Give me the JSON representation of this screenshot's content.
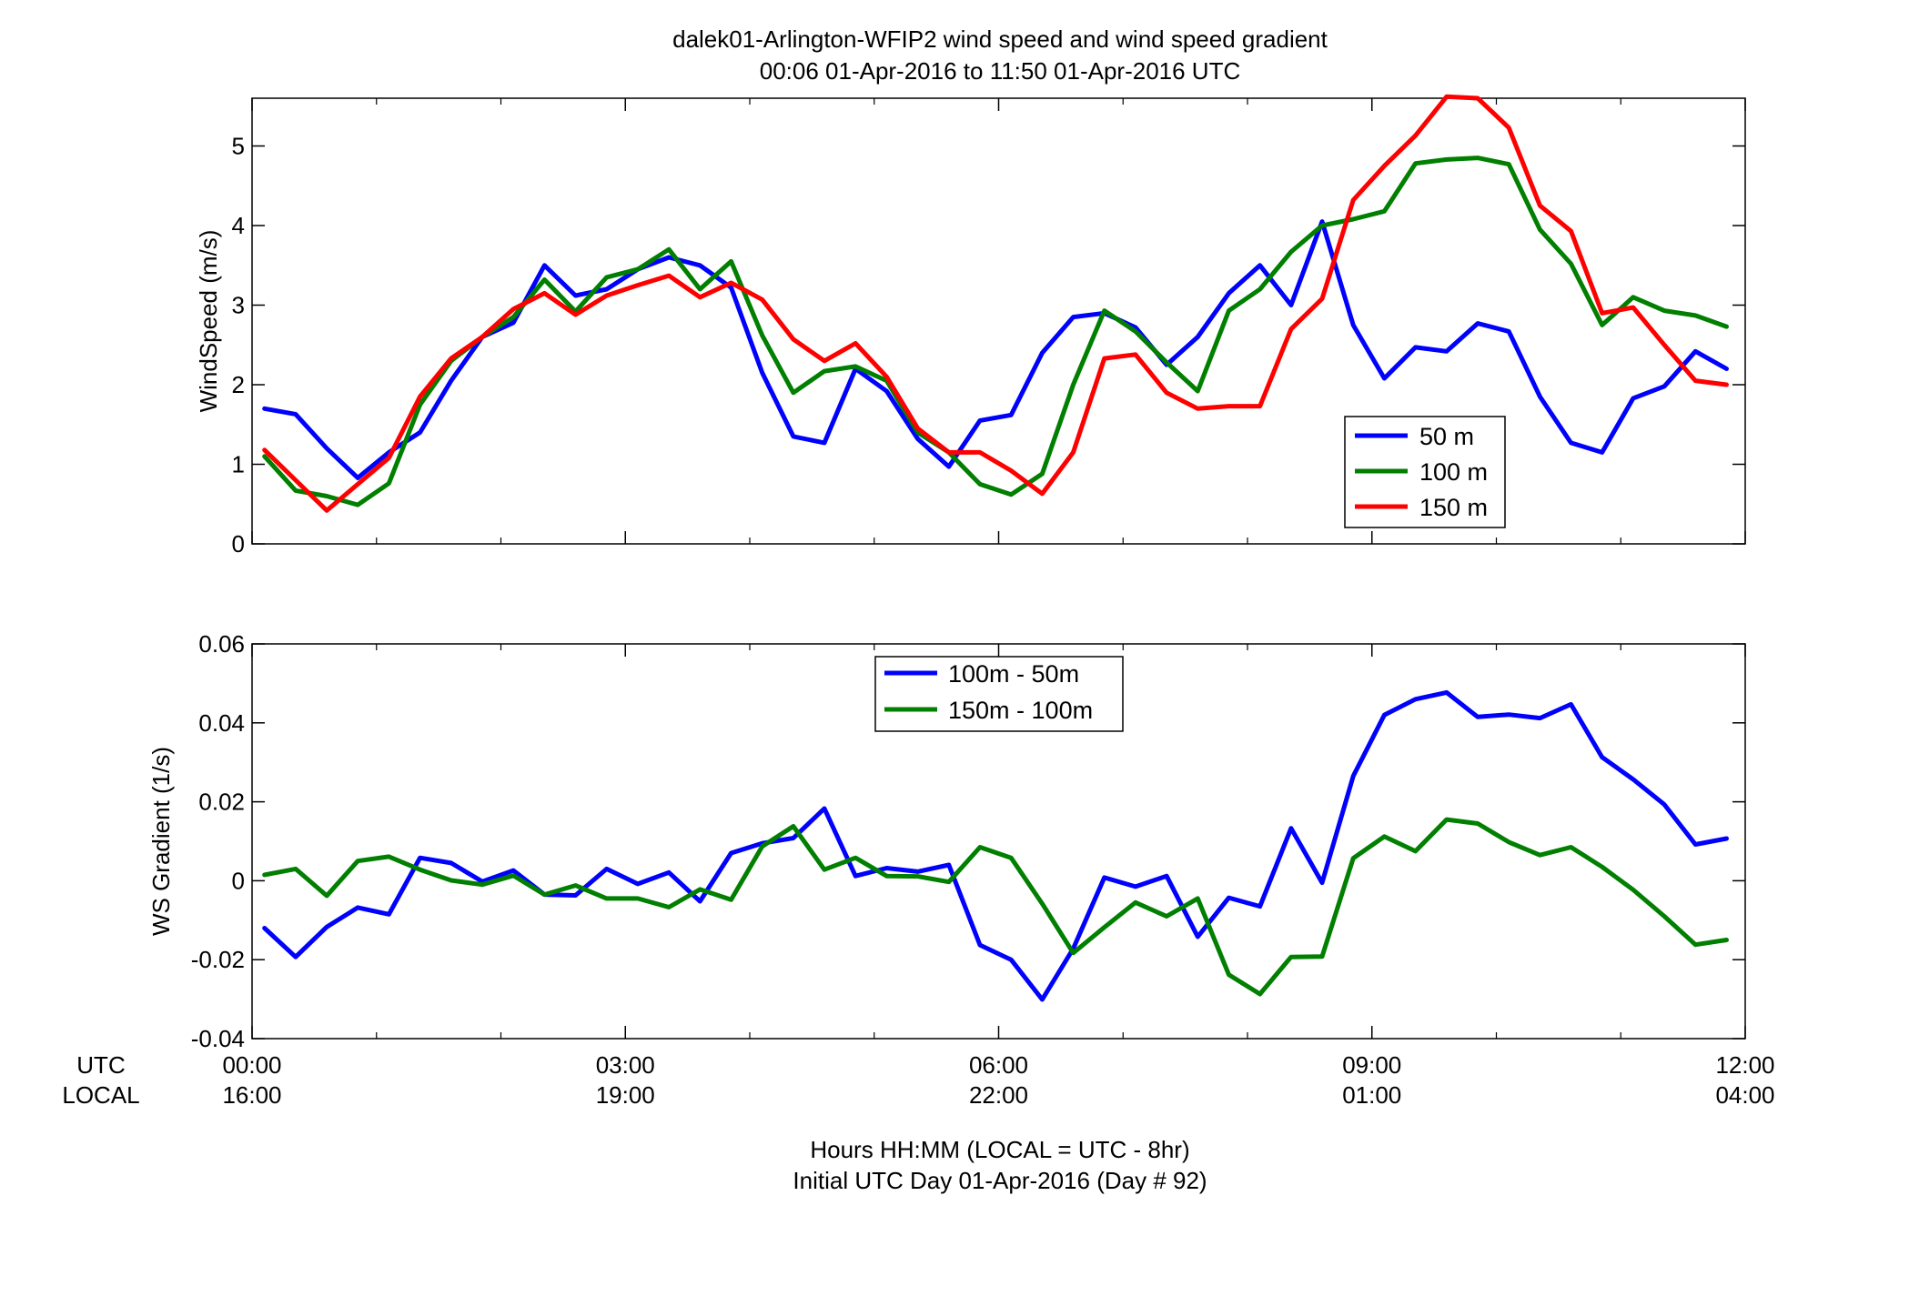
{
  "figure": {
    "title_line1": "dalek01-Arlington-WFIP2  wind speed and wind speed gradient",
    "title_line2": "00:06 01-Apr-2016 to 11:50 01-Apr-2016  UTC",
    "xlabel_line1": "Hours HH:MM  (LOCAL = UTC - 8hr)",
    "xlabel_line2": "Initial UTC Day 01-Apr-2016 (Day # 92)",
    "utc_label": "UTC",
    "local_label": "LOCAL",
    "x_ticks_utc": [
      "00:00",
      "03:00",
      "06:00",
      "09:00",
      "12:00"
    ],
    "x_ticks_local": [
      "16:00",
      "19:00",
      "22:00",
      "01:00",
      "04:00"
    ]
  },
  "chart_data": [
    {
      "type": "line",
      "ylabel": "WindSpeed (m/s)",
      "ylim": [
        0,
        5.6
      ],
      "xlim": [
        0,
        12
      ],
      "y_ticks": [
        "0",
        "1",
        "2",
        "3",
        "4",
        "5"
      ],
      "y_tick_values": [
        0,
        1,
        2,
        3,
        4,
        5
      ],
      "legend_position": "middle-right",
      "x": [
        0.1,
        0.35,
        0.6,
        0.85,
        1.1,
        1.35,
        1.6,
        1.85,
        2.1,
        2.35,
        2.6,
        2.85,
        3.1,
        3.35,
        3.6,
        3.85,
        4.1,
        4.35,
        4.6,
        4.85,
        5.1,
        5.35,
        5.6,
        5.85,
        6.1,
        6.35,
        6.6,
        6.85,
        7.1,
        7.35,
        7.6,
        7.85,
        8.1,
        8.35,
        8.6,
        8.85,
        9.1,
        9.35,
        9.6,
        9.85,
        10.1,
        10.35,
        10.6,
        10.85,
        11.1,
        11.35,
        11.6,
        11.85
      ],
      "series": [
        {
          "name": "50 m",
          "color": "#0000ff",
          "values": [
            1.7,
            1.63,
            1.2,
            0.83,
            1.15,
            1.4,
            2.05,
            2.6,
            2.78,
            3.5,
            3.12,
            3.2,
            3.45,
            3.6,
            3.5,
            3.22,
            2.15,
            1.35,
            1.27,
            2.2,
            1.92,
            1.32,
            0.97,
            1.55,
            1.62,
            2.4,
            2.85,
            2.9,
            2.72,
            2.25,
            2.6,
            3.15,
            3.5,
            3.0,
            4.05,
            2.75,
            2.08,
            2.47,
            2.42,
            2.77,
            2.67,
            1.85,
            1.27,
            1.15,
            1.83,
            1.98,
            2.42,
            2.2
          ]
        },
        {
          "name": "100 m",
          "color": "#007f00",
          "values": [
            1.1,
            0.67,
            0.6,
            0.49,
            0.76,
            1.75,
            2.3,
            2.6,
            2.85,
            3.32,
            2.92,
            3.35,
            3.45,
            3.7,
            3.2,
            3.55,
            2.62,
            1.9,
            2.17,
            2.23,
            2.05,
            1.4,
            1.15,
            0.75,
            0.62,
            0.88,
            2.0,
            2.93,
            2.67,
            2.28,
            1.92,
            2.93,
            3.2,
            3.67,
            4.0,
            4.08,
            4.18,
            4.78,
            4.83,
            4.85,
            4.77,
            3.95,
            3.52,
            2.75,
            3.1,
            2.93,
            2.87,
            2.73
          ]
        },
        {
          "name": "150 m",
          "color": "#ff0000",
          "values": [
            1.18,
            0.8,
            0.42,
            0.75,
            1.08,
            1.85,
            2.33,
            2.6,
            2.95,
            3.15,
            2.88,
            3.12,
            3.25,
            3.37,
            3.1,
            3.28,
            3.07,
            2.57,
            2.3,
            2.52,
            2.1,
            1.45,
            1.15,
            1.15,
            0.92,
            0.63,
            1.15,
            2.33,
            2.38,
            1.9,
            1.7,
            1.73,
            1.73,
            2.7,
            3.08,
            4.32,
            4.75,
            5.13,
            5.62,
            5.6,
            5.23,
            4.25,
            3.93,
            2.9,
            2.97,
            2.5,
            2.05,
            2.0
          ]
        }
      ]
    },
    {
      "type": "line",
      "ylabel": "WS Gradient (1/s)",
      "ylim": [
        -0.04,
        0.06
      ],
      "xlim": [
        0,
        12
      ],
      "y_ticks": [
        "-0.04",
        "-0.02",
        "0",
        "0.02",
        "0.04",
        "0.06"
      ],
      "y_tick_values": [
        -0.04,
        -0.02,
        0,
        0.02,
        0.04,
        0.06
      ],
      "legend_position": "top-center",
      "x": [
        0.1,
        0.35,
        0.6,
        0.85,
        1.1,
        1.35,
        1.6,
        1.85,
        2.1,
        2.35,
        2.6,
        2.85,
        3.1,
        3.35,
        3.6,
        3.85,
        4.1,
        4.35,
        4.6,
        4.85,
        5.1,
        5.35,
        5.6,
        5.85,
        6.1,
        6.35,
        6.6,
        6.85,
        7.1,
        7.35,
        7.6,
        7.85,
        8.1,
        8.35,
        8.6,
        8.85,
        9.1,
        9.35,
        9.6,
        9.85,
        10.1,
        10.35,
        10.6,
        10.85,
        11.1,
        11.35,
        11.6,
        11.85
      ],
      "series": [
        {
          "name": "100m - 50m",
          "color": "#0000ff",
          "values": [
            -0.012,
            -0.0193,
            -0.0117,
            -0.0068,
            -0.0085,
            0.0058,
            0.0045,
            -0.0002,
            0.0026,
            -0.0035,
            -0.0037,
            0.003,
            -0.0008,
            0.0021,
            -0.0052,
            0.007,
            0.0095,
            0.0108,
            0.0183,
            0.0012,
            0.0032,
            0.0023,
            0.004,
            -0.0163,
            -0.02,
            -0.0301,
            -0.0172,
            0.0008,
            -0.0015,
            0.0012,
            -0.0142,
            -0.0043,
            -0.0065,
            0.0133,
            -0.0005,
            0.0265,
            0.042,
            0.046,
            0.0477,
            0.0415,
            0.0421,
            0.0412,
            0.0447,
            0.0313,
            0.0257,
            0.0193,
            0.0092,
            0.0107
          ]
        },
        {
          "name": "150m - 100m",
          "color": "#007f00",
          "values": [
            0.0015,
            0.003,
            -0.0038,
            0.005,
            0.0061,
            0.0028,
            0.0001,
            -0.001,
            0.0013,
            -0.0035,
            -0.0012,
            -0.0045,
            -0.0045,
            -0.0067,
            -0.0022,
            -0.0048,
            0.0087,
            0.0138,
            0.0028,
            0.0058,
            0.0012,
            0.0011,
            -0.0003,
            0.0085,
            0.0058,
            -0.0058,
            -0.0183,
            -0.0118,
            -0.0055,
            -0.009,
            -0.0045,
            -0.0238,
            -0.0287,
            -0.0193,
            -0.0192,
            0.0057,
            0.0112,
            0.0075,
            0.0155,
            0.0145,
            0.0098,
            0.0065,
            0.0085,
            0.0035,
            -0.0023,
            -0.009,
            -0.0162,
            -0.015
          ]
        }
      ]
    }
  ]
}
